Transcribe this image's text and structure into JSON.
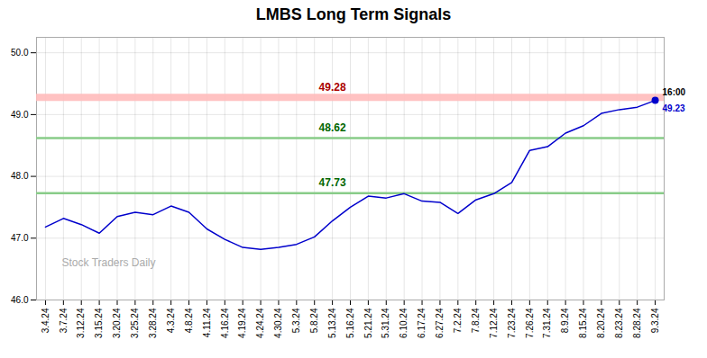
{
  "chart_data": {
    "type": "line",
    "title": "LMBS Long Term Signals",
    "categories": [
      "3.4.24",
      "3.7.24",
      "3.12.24",
      "3.15.24",
      "3.20.24",
      "3.25.24",
      "3.28.24",
      "4.3.24",
      "4.8.24",
      "4.11.24",
      "4.16.24",
      "4.19.24",
      "4.24.24",
      "4.30.24",
      "5.3.24",
      "5.8.24",
      "5.13.24",
      "5.16.24",
      "5.21.24",
      "5.31.24",
      "6.10.24",
      "6.17.24",
      "6.27.24",
      "7.2.24",
      "7.8.24",
      "7.12.24",
      "7.23.24",
      "7.26.24",
      "7.31.24",
      "8.9.24",
      "8.15.24",
      "8.20.24",
      "8.23.24",
      "8.28.24",
      "9.3.24"
    ],
    "values": [
      47.18,
      47.32,
      47.22,
      47.08,
      47.35,
      47.42,
      47.38,
      47.52,
      47.42,
      47.15,
      46.98,
      46.85,
      46.82,
      46.85,
      46.9,
      47.02,
      47.28,
      47.5,
      47.68,
      47.65,
      47.72,
      47.6,
      47.58,
      47.4,
      47.62,
      47.72,
      47.9,
      48.42,
      48.48,
      48.7,
      48.82,
      49.02,
      49.08,
      49.12,
      49.23
    ],
    "color": "#0000cc",
    "ylim": [
      46.0,
      50.25
    ],
    "yticks": [
      46,
      47,
      48,
      49,
      50
    ],
    "grid": true,
    "lines": [
      {
        "value": 49.28,
        "label": "49.28",
        "color": "#ffbbbb",
        "label_color": "#aa0000",
        "x": "5.13.24"
      },
      {
        "value": 48.62,
        "label": "48.62",
        "color": "#88cc88",
        "label_color": "#006600",
        "x": "5.13.24"
      },
      {
        "value": 47.73,
        "label": "47.73",
        "color": "#88cc88",
        "label_color": "#006600",
        "x": "5.13.24"
      }
    ],
    "end_label": {
      "time": "16:00",
      "value_label": "49.23"
    },
    "watermark": "Stock Traders Daily"
  }
}
